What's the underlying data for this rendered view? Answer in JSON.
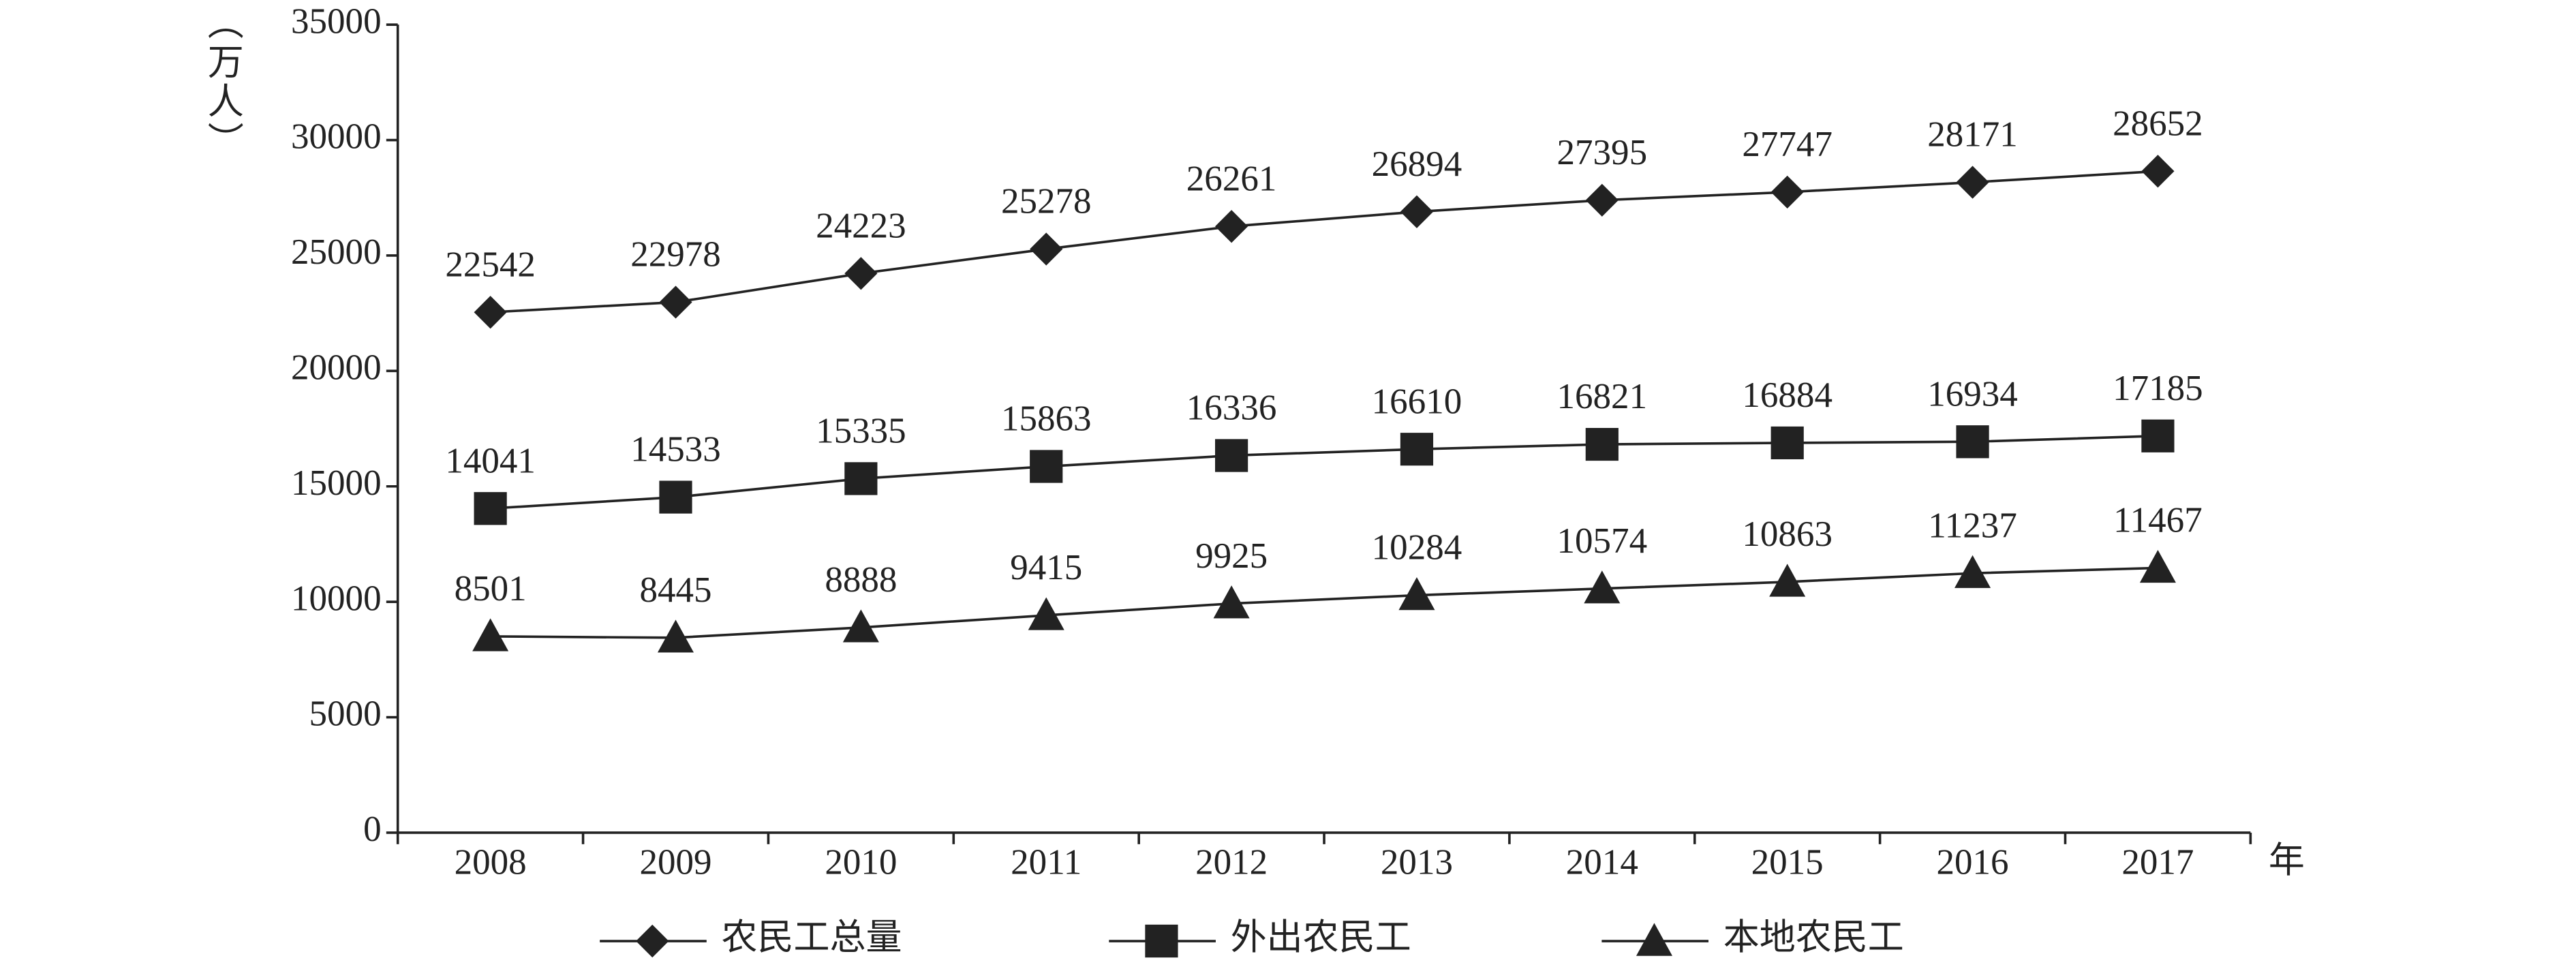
{
  "chart_data": {
    "type": "line",
    "y_label": "（万人）",
    "x_label": "年",
    "categories": [
      "2008",
      "2009",
      "2010",
      "2011",
      "2012",
      "2013",
      "2014",
      "2015",
      "2016",
      "2017"
    ],
    "series": [
      {
        "name": "农民工总量",
        "color": "#222222",
        "marker": "diamond",
        "values": [
          22542,
          22978,
          24223,
          25278,
          26261,
          26894,
          27395,
          27747,
          28171,
          28652
        ]
      },
      {
        "name": "外出农民工",
        "color": "#222222",
        "marker": "square",
        "values": [
          14041,
          14533,
          15335,
          15863,
          16336,
          16610,
          16821,
          16884,
          16934,
          17185
        ]
      },
      {
        "name": "本地农民工",
        "color": "#222222",
        "marker": "triangle",
        "values": [
          8501,
          8445,
          8888,
          9415,
          9925,
          10284,
          10574,
          10863,
          11237,
          11467
        ]
      }
    ],
    "ylim": [
      0,
      35000
    ],
    "yticks": [
      0,
      5000,
      10000,
      15000,
      20000,
      25000,
      30000,
      35000
    ],
    "grid": false,
    "legend": "bottom"
  }
}
